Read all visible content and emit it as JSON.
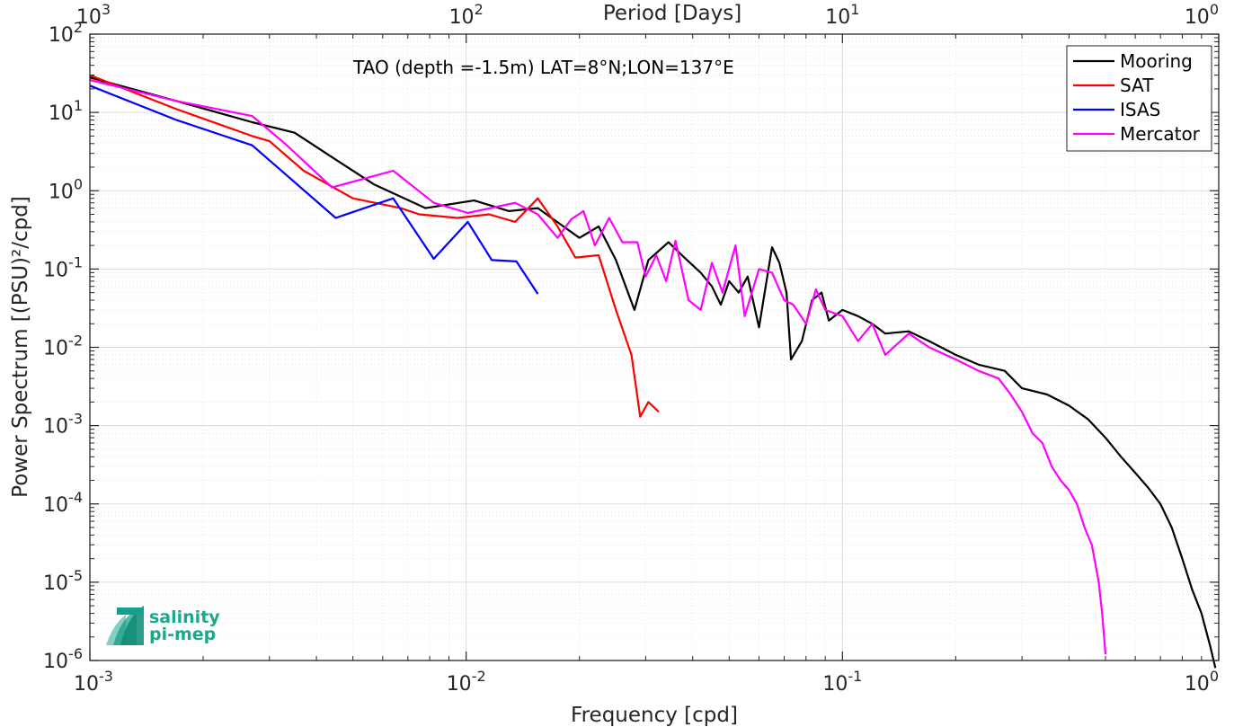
{
  "chart_data": {
    "type": "line",
    "title": "",
    "annotation": "TAO (depth =-1.5m) LAT=8°N;LON=137°E",
    "xlabel": "Frequency [cpd]",
    "ylabel": "Power Spectrum [(PSU)²/cpd]",
    "x2label": "Period [Days]",
    "xscale": "log",
    "yscale": "log",
    "xlim": [
      0.001,
      1
    ],
    "ylim": [
      1e-06,
      100
    ],
    "grid": true,
    "legend_position": "top-right",
    "x_ticks": [
      {
        "base": "10",
        "exp": "-3"
      },
      {
        "base": "10",
        "exp": "-2"
      },
      {
        "base": "10",
        "exp": "-1"
      },
      {
        "base": "10",
        "exp": "0"
      }
    ],
    "x2_ticks": [
      {
        "base": "10",
        "exp": "3"
      },
      {
        "base": "10",
        "exp": "2"
      },
      {
        "base": "10",
        "exp": "1"
      },
      {
        "base": "10",
        "exp": "0"
      }
    ],
    "y_ticks": [
      {
        "base": "10",
        "exp": "-6"
      },
      {
        "base": "10",
        "exp": "-5"
      },
      {
        "base": "10",
        "exp": "-4"
      },
      {
        "base": "10",
        "exp": "-3"
      },
      {
        "base": "10",
        "exp": "-2"
      },
      {
        "base": "10",
        "exp": "-1"
      },
      {
        "base": "10",
        "exp": "0"
      },
      {
        "base": "10",
        "exp": "1"
      },
      {
        "base": "10",
        "exp": "2"
      }
    ],
    "series": [
      {
        "name": "Mooring",
        "color": "#000000",
        "points": [
          [
            0.001,
            28
          ],
          [
            0.0017,
            14
          ],
          [
            0.0027,
            7.5
          ],
          [
            0.0035,
            5.5
          ],
          [
            0.0045,
            2.5
          ],
          [
            0.0057,
            1.2
          ],
          [
            0.0078,
            0.6
          ],
          [
            0.0105,
            0.75
          ],
          [
            0.013,
            0.55
          ],
          [
            0.0155,
            0.6
          ],
          [
            0.02,
            0.25
          ],
          [
            0.0225,
            0.35
          ],
          [
            0.025,
            0.13
          ],
          [
            0.028,
            0.03
          ],
          [
            0.0305,
            0.13
          ],
          [
            0.0345,
            0.22
          ],
          [
            0.038,
            0.14
          ],
          [
            0.042,
            0.09
          ],
          [
            0.045,
            0.06
          ],
          [
            0.0475,
            0.035
          ],
          [
            0.05,
            0.07
          ],
          [
            0.053,
            0.05
          ],
          [
            0.056,
            0.08
          ],
          [
            0.06,
            0.018
          ],
          [
            0.065,
            0.19
          ],
          [
            0.068,
            0.12
          ],
          [
            0.071,
            0.05
          ],
          [
            0.073,
            0.007
          ],
          [
            0.078,
            0.012
          ],
          [
            0.083,
            0.04
          ],
          [
            0.088,
            0.05
          ],
          [
            0.092,
            0.022
          ],
          [
            0.1,
            0.03
          ],
          [
            0.11,
            0.025
          ],
          [
            0.12,
            0.02
          ],
          [
            0.13,
            0.015
          ],
          [
            0.15,
            0.016
          ],
          [
            0.17,
            0.012
          ],
          [
            0.2,
            0.008
          ],
          [
            0.23,
            0.006
          ],
          [
            0.27,
            0.005
          ],
          [
            0.3,
            0.003
          ],
          [
            0.35,
            0.0025
          ],
          [
            0.4,
            0.0018
          ],
          [
            0.45,
            0.0012
          ],
          [
            0.5,
            0.0007
          ],
          [
            0.55,
            0.0004
          ],
          [
            0.6,
            0.00025
          ],
          [
            0.65,
            0.00016
          ],
          [
            0.7,
            0.0001
          ],
          [
            0.75,
            5e-05
          ],
          [
            0.8,
            2e-05
          ],
          [
            0.85,
            8e-06
          ],
          [
            0.9,
            4e-06
          ],
          [
            0.95,
            1.5e-06
          ],
          [
            0.98,
            8e-07
          ]
        ]
      },
      {
        "name": "SAT",
        "color": "#ff0000",
        "points": [
          [
            0.001,
            30
          ],
          [
            0.0017,
            11
          ],
          [
            0.0027,
            5
          ],
          [
            0.003,
            4.3
          ],
          [
            0.0037,
            1.8
          ],
          [
            0.005,
            0.8
          ],
          [
            0.0067,
            0.6
          ],
          [
            0.0075,
            0.5
          ],
          [
            0.0095,
            0.45
          ],
          [
            0.0115,
            0.5
          ],
          [
            0.0135,
            0.4
          ],
          [
            0.0155,
            0.8
          ],
          [
            0.0175,
            0.35
          ],
          [
            0.0195,
            0.14
          ],
          [
            0.0225,
            0.15
          ],
          [
            0.025,
            0.03
          ],
          [
            0.0275,
            0.008
          ],
          [
            0.029,
            0.0013
          ],
          [
            0.0305,
            0.002
          ],
          [
            0.0325,
            0.0015
          ]
        ]
      },
      {
        "name": "ISAS",
        "color": "#0000ff",
        "points": [
          [
            0.001,
            22
          ],
          [
            0.0017,
            8
          ],
          [
            0.0027,
            3.8
          ],
          [
            0.0045,
            0.45
          ],
          [
            0.0064,
            0.8
          ],
          [
            0.0082,
            0.135
          ],
          [
            0.0101,
            0.4
          ],
          [
            0.0117,
            0.13
          ],
          [
            0.0136,
            0.125
          ],
          [
            0.0155,
            0.048
          ]
        ]
      },
      {
        "name": "Mercator",
        "color": "#ff00ff",
        "points": [
          [
            0.001,
            26
          ],
          [
            0.0017,
            14
          ],
          [
            0.0027,
            9
          ],
          [
            0.0033,
            4
          ],
          [
            0.0044,
            1.1
          ],
          [
            0.0064,
            1.8
          ],
          [
            0.0082,
            0.7
          ],
          [
            0.0101,
            0.52
          ],
          [
            0.0135,
            0.7
          ],
          [
            0.0155,
            0.5
          ],
          [
            0.0175,
            0.25
          ],
          [
            0.019,
            0.43
          ],
          [
            0.0205,
            0.55
          ],
          [
            0.022,
            0.2
          ],
          [
            0.024,
            0.45
          ],
          [
            0.026,
            0.22
          ],
          [
            0.0285,
            0.22
          ],
          [
            0.03,
            0.08
          ],
          [
            0.032,
            0.15
          ],
          [
            0.034,
            0.07
          ],
          [
            0.036,
            0.23
          ],
          [
            0.039,
            0.04
          ],
          [
            0.042,
            0.03
          ],
          [
            0.045,
            0.12
          ],
          [
            0.048,
            0.05
          ],
          [
            0.052,
            0.2
          ],
          [
            0.055,
            0.025
          ],
          [
            0.06,
            0.1
          ],
          [
            0.065,
            0.09
          ],
          [
            0.07,
            0.04
          ],
          [
            0.074,
            0.035
          ],
          [
            0.08,
            0.02
          ],
          [
            0.085,
            0.055
          ],
          [
            0.09,
            0.03
          ],
          [
            0.1,
            0.025
          ],
          [
            0.11,
            0.012
          ],
          [
            0.12,
            0.02
          ],
          [
            0.13,
            0.008
          ],
          [
            0.15,
            0.015
          ],
          [
            0.17,
            0.01
          ],
          [
            0.2,
            0.007
          ],
          [
            0.23,
            0.005
          ],
          [
            0.26,
            0.004
          ],
          [
            0.28,
            0.0025
          ],
          [
            0.3,
            0.0015
          ],
          [
            0.32,
            0.0008
          ],
          [
            0.34,
            0.0006
          ],
          [
            0.36,
            0.0003
          ],
          [
            0.38,
            0.0002
          ],
          [
            0.4,
            0.00015
          ],
          [
            0.42,
            0.0001
          ],
          [
            0.44,
            5e-05
          ],
          [
            0.46,
            3e-05
          ],
          [
            0.48,
            1e-05
          ],
          [
            0.49,
            4e-06
          ],
          [
            0.5,
            1.2e-06
          ]
        ]
      }
    ]
  },
  "logo": {
    "line1": "salinity",
    "line2": "pi-mep"
  }
}
